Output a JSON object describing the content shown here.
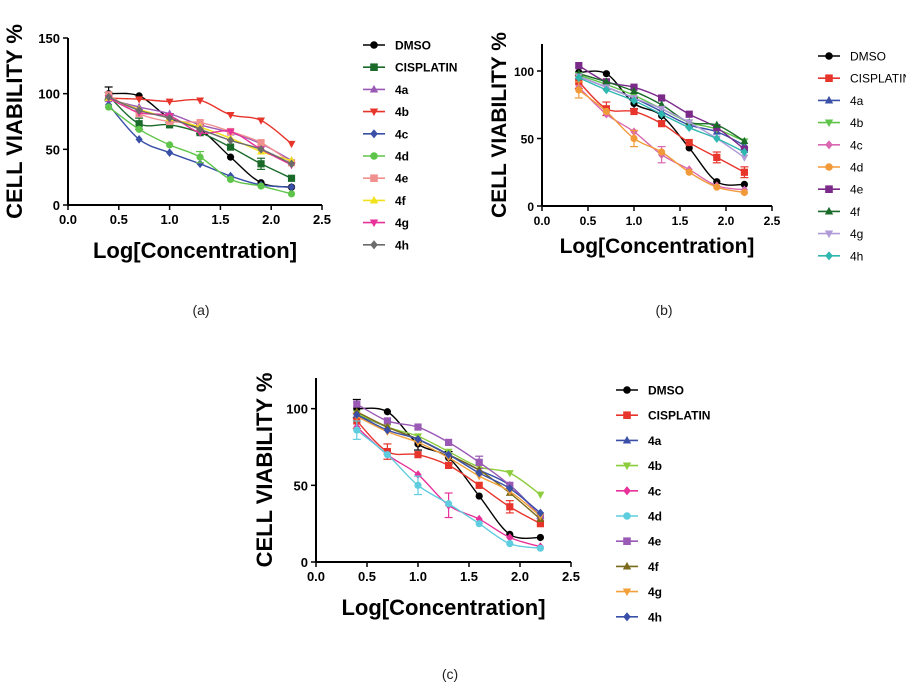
{
  "captions": [
    "(a)",
    "(b)",
    "(c)"
  ],
  "chart_data": [
    {
      "type": "scatter",
      "panel": "a",
      "ylabel": "CELL VIABILITY %",
      "xlabel": "Log[Concentration]",
      "xlim": [
        0.0,
        2.5
      ],
      "ylim": [
        0,
        150
      ],
      "xticks": [
        "0.0",
        "0.5",
        "1.0",
        "1.5",
        "2.0",
        "2.5"
      ],
      "yticks": [
        "0",
        "50",
        "100",
        "150"
      ],
      "x": [
        0.4,
        0.7,
        1.0,
        1.3,
        1.6,
        1.9,
        2.2
      ],
      "legend": "right",
      "series": [
        {
          "name": "DMSO",
          "color": "#000000",
          "marker": "circle",
          "values": [
            100,
            98,
            78,
            68,
            43,
            20,
            16
          ],
          "errors": [
            6,
            0,
            4,
            4,
            0,
            0,
            0
          ]
        },
        {
          "name": "CISPLATIN",
          "color": "#1a6b2a",
          "marker": "square",
          "values": [
            98,
            73,
            72,
            65,
            52,
            37,
            24
          ],
          "errors": [
            3,
            5,
            0,
            0,
            0,
            5,
            0
          ]
        },
        {
          "name": "4a",
          "color": "#9b59b6",
          "marker": "triangle-up",
          "values": [
            95,
            88,
            82,
            72,
            65,
            55,
            40
          ],
          "errors": [
            0,
            0,
            0,
            0,
            0,
            0,
            0
          ]
        },
        {
          "name": "4b",
          "color": "#e8352b",
          "marker": "triangle-down",
          "values": [
            96,
            95,
            93,
            94,
            81,
            76,
            55
          ],
          "errors": [
            0,
            0,
            0,
            0,
            0,
            0,
            0
          ]
        },
        {
          "name": "4c",
          "color": "#3a50a8",
          "marker": "diamond",
          "values": [
            90,
            59,
            47,
            37,
            26,
            18,
            16
          ],
          "errors": [
            0,
            0,
            0,
            0,
            0,
            0,
            0
          ]
        },
        {
          "name": "4d",
          "color": "#5fc44a",
          "marker": "circle",
          "values": [
            88,
            68,
            54,
            43,
            23,
            17,
            10
          ],
          "errors": [
            0,
            0,
            0,
            5,
            0,
            0,
            0
          ]
        },
        {
          "name": "4e",
          "color": "#f0908f",
          "marker": "square",
          "values": [
            99,
            82,
            75,
            74,
            66,
            56,
            38
          ],
          "errors": [
            0,
            0,
            0,
            0,
            0,
            0,
            0
          ]
        },
        {
          "name": "4f",
          "color": "#f2e21b",
          "marker": "triangle-up",
          "values": [
            96,
            86,
            78,
            70,
            60,
            48,
            40
          ],
          "errors": [
            0,
            0,
            0,
            0,
            0,
            0,
            0
          ]
        },
        {
          "name": "4g",
          "color": "#e8329a",
          "marker": "triangle-down",
          "values": [
            96,
            83,
            80,
            65,
            66,
            50,
            36
          ],
          "errors": [
            0,
            0,
            0,
            0,
            0,
            0,
            0
          ]
        },
        {
          "name": "4h",
          "color": "#6b6b6b",
          "marker": "diamond",
          "values": [
            97,
            85,
            78,
            68,
            58,
            50,
            37
          ],
          "errors": [
            0,
            0,
            0,
            0,
            0,
            0,
            0
          ]
        }
      ]
    },
    {
      "type": "scatter",
      "panel": "b",
      "ylabel": "CELL VIABILITY %",
      "xlabel": "Log[Concentration]",
      "xlim": [
        0.0,
        2.5
      ],
      "ylim": [
        0,
        120
      ],
      "xticks": [
        "0.0",
        "0.5",
        "1.0",
        "1.5",
        "2.0",
        "2.5"
      ],
      "yticks": [
        "0",
        "50",
        "100"
      ],
      "x": [
        0.4,
        0.7,
        1.0,
        1.3,
        1.6,
        1.9,
        2.2
      ],
      "legend": "right",
      "series": [
        {
          "name": "DMSO",
          "color": "#000000",
          "marker": "circle",
          "values": [
            99,
            98,
            76,
            67,
            43,
            18,
            16
          ],
          "errors": [
            0,
            0,
            4,
            4,
            0,
            0,
            0
          ]
        },
        {
          "name": "CISPLATIN",
          "color": "#e8352b",
          "marker": "square",
          "values": [
            92,
            72,
            70,
            61,
            47,
            36,
            25
          ],
          "errors": [
            5,
            5,
            0,
            0,
            0,
            4,
            4
          ]
        },
        {
          "name": "4a",
          "color": "#3a50a8",
          "marker": "triangle-up",
          "values": [
            96,
            88,
            80,
            70,
            60,
            55,
            45
          ],
          "errors": [
            0,
            0,
            0,
            0,
            0,
            0,
            0
          ]
        },
        {
          "name": "4b",
          "color": "#5fc44a",
          "marker": "triangle-down",
          "values": [
            97,
            90,
            82,
            72,
            62,
            57,
            48
          ],
          "errors": [
            0,
            0,
            0,
            0,
            0,
            0,
            0
          ]
        },
        {
          "name": "4c",
          "color": "#d968b0",
          "marker": "diamond",
          "values": [
            88,
            68,
            55,
            38,
            27,
            15,
            12
          ],
          "errors": [
            0,
            0,
            0,
            6,
            0,
            0,
            0
          ]
        },
        {
          "name": "4d",
          "color": "#f29a3a",
          "marker": "circle",
          "values": [
            86,
            70,
            50,
            40,
            25,
            14,
            10
          ],
          "errors": [
            6,
            0,
            6,
            0,
            0,
            0,
            0
          ]
        },
        {
          "name": "4e",
          "color": "#7b2a8a",
          "marker": "square",
          "values": [
            104,
            92,
            88,
            80,
            68,
            58,
            42
          ],
          "errors": [
            0,
            0,
            0,
            0,
            0,
            0,
            0
          ]
        },
        {
          "name": "4f",
          "color": "#1a6b2a",
          "marker": "triangle-up",
          "values": [
            98,
            92,
            85,
            75,
            62,
            60,
            48
          ],
          "errors": [
            0,
            0,
            0,
            0,
            0,
            0,
            0
          ]
        },
        {
          "name": "4g",
          "color": "#b09ad8",
          "marker": "triangle-down",
          "values": [
            96,
            88,
            80,
            72,
            62,
            50,
            36
          ],
          "errors": [
            0,
            0,
            0,
            0,
            0,
            0,
            0
          ]
        },
        {
          "name": "4h",
          "color": "#2fb8b0",
          "marker": "diamond",
          "values": [
            95,
            86,
            78,
            68,
            58,
            50,
            40
          ],
          "errors": [
            0,
            0,
            0,
            0,
            0,
            0,
            0
          ]
        }
      ]
    },
    {
      "type": "scatter",
      "panel": "c",
      "ylabel": "CELL VIABILITY %",
      "xlabel": "Log[Concentration]",
      "xlim": [
        0.0,
        2.5
      ],
      "ylim": [
        0,
        120
      ],
      "xticks": [
        "0.0",
        "0.5",
        "1.0",
        "1.5",
        "2.0",
        "2.5"
      ],
      "yticks": [
        "0",
        "50",
        "100"
      ],
      "x": [
        0.4,
        0.7,
        1.0,
        1.3,
        1.6,
        1.9,
        2.2
      ],
      "legend": "right",
      "series": [
        {
          "name": "DMSO",
          "color": "#000000",
          "marker": "circle",
          "values": [
            100,
            98,
            77,
            68,
            43,
            18,
            16
          ],
          "errors": [
            6,
            0,
            4,
            4,
            0,
            0,
            0
          ]
        },
        {
          "name": "CISPLATIN",
          "color": "#e8352b",
          "marker": "square",
          "values": [
            92,
            72,
            70,
            63,
            50,
            36,
            25
          ],
          "errors": [
            5,
            5,
            0,
            0,
            0,
            4,
            0
          ]
        },
        {
          "name": "4a",
          "color": "#3a50a8",
          "marker": "triangle-up",
          "values": [
            96,
            88,
            80,
            70,
            60,
            50,
            30
          ],
          "errors": [
            0,
            0,
            0,
            0,
            0,
            0,
            0
          ]
        },
        {
          "name": "4b",
          "color": "#8ccd3e",
          "marker": "triangle-down",
          "values": [
            97,
            88,
            82,
            72,
            62,
            58,
            44
          ],
          "errors": [
            0,
            0,
            0,
            0,
            0,
            0,
            0
          ]
        },
        {
          "name": "4c",
          "color": "#e8329a",
          "marker": "diamond",
          "values": [
            88,
            70,
            57,
            37,
            28,
            16,
            10
          ],
          "errors": [
            0,
            0,
            0,
            8,
            0,
            0,
            0
          ]
        },
        {
          "name": "4d",
          "color": "#5fcde0",
          "marker": "circle",
          "values": [
            86,
            70,
            50,
            38,
            25,
            12,
            9
          ],
          "errors": [
            6,
            0,
            6,
            0,
            0,
            0,
            0
          ]
        },
        {
          "name": "4e",
          "color": "#9b59b6",
          "marker": "square",
          "values": [
            103,
            92,
            88,
            78,
            65,
            50,
            30
          ],
          "errors": [
            0,
            0,
            0,
            0,
            4,
            0,
            0
          ]
        },
        {
          "name": "4f",
          "color": "#7a6a1a",
          "marker": "triangle-up",
          "values": [
            98,
            88,
            80,
            70,
            60,
            45,
            28
          ],
          "errors": [
            0,
            0,
            0,
            0,
            0,
            0,
            0
          ]
        },
        {
          "name": "4g",
          "color": "#f2a03a",
          "marker": "triangle-down",
          "values": [
            95,
            85,
            78,
            68,
            56,
            46,
            30
          ],
          "errors": [
            0,
            0,
            0,
            0,
            0,
            0,
            0
          ]
        },
        {
          "name": "4h",
          "color": "#3a50a8",
          "marker": "diamond",
          "values": [
            96,
            86,
            80,
            70,
            58,
            48,
            32
          ],
          "errors": [
            0,
            0,
            0,
            0,
            0,
            0,
            0
          ]
        }
      ]
    }
  ]
}
